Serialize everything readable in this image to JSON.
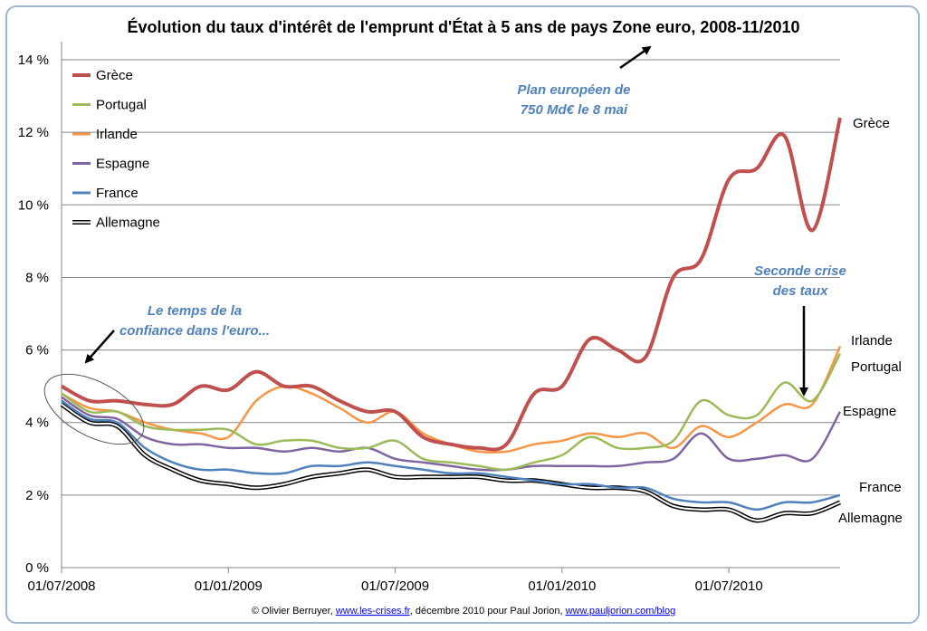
{
  "chart_data": {
    "type": "line",
    "title": "Évolution du taux d'intérêt de l'emprunt d'État à 5 ans de pays Zone euro, 2008-11/2010",
    "xlabel": "",
    "ylabel": "",
    "ylim": [
      0,
      14.5
    ],
    "yticks": [
      "0 %",
      "2 %",
      "4 %",
      "6 %",
      "8 %",
      "10 %",
      "12 %",
      "14 %"
    ],
    "xticks": [
      "01/07/2008",
      "01/01/2009",
      "01/07/2009",
      "01/01/2010",
      "01/07/2010"
    ],
    "x": [
      "2008-07",
      "2008-08",
      "2008-09",
      "2008-10",
      "2008-11",
      "2008-12",
      "2009-01",
      "2009-02",
      "2009-03",
      "2009-04",
      "2009-05",
      "2009-06",
      "2009-07",
      "2009-08",
      "2009-09",
      "2009-10",
      "2009-11",
      "2009-12",
      "2010-01",
      "2010-02",
      "2010-03",
      "2010-04",
      "2010-05",
      "2010-06",
      "2010-07",
      "2010-08",
      "2010-09",
      "2010-10",
      "2010-11"
    ],
    "grid": true,
    "legend_position": "top-left",
    "series": [
      {
        "name": "Grèce",
        "color": "#c0504d",
        "end_label": "Grèce",
        "values": [
          5.0,
          4.6,
          4.6,
          4.5,
          4.5,
          5.0,
          4.9,
          5.4,
          5.0,
          5.0,
          4.6,
          4.3,
          4.3,
          3.6,
          3.4,
          3.3,
          3.4,
          4.8,
          5.0,
          6.3,
          6.0,
          5.8,
          8.0,
          8.5,
          10.7,
          11.0,
          11.9,
          9.3,
          12.4
        ]
      },
      {
        "name": "Portugal",
        "color": "#9bbb59",
        "end_label": "Portugal",
        "values": [
          4.8,
          4.3,
          4.3,
          3.9,
          3.8,
          3.8,
          3.8,
          3.4,
          3.5,
          3.5,
          3.3,
          3.3,
          3.5,
          3.0,
          2.9,
          2.8,
          2.7,
          2.9,
          3.1,
          3.6,
          3.3,
          3.3,
          3.5,
          4.6,
          4.2,
          4.2,
          5.1,
          4.6,
          5.9
        ]
      },
      {
        "name": "Irlande",
        "color": "#f79646",
        "end_label": "Irlande",
        "values": [
          4.8,
          4.4,
          4.3,
          4.0,
          3.8,
          3.7,
          3.6,
          4.6,
          5.0,
          4.8,
          4.4,
          4.0,
          4.3,
          3.7,
          3.4,
          3.2,
          3.2,
          3.4,
          3.5,
          3.7,
          3.6,
          3.7,
          3.3,
          3.9,
          3.6,
          4.0,
          4.5,
          4.5,
          6.1
        ]
      },
      {
        "name": "Espagne",
        "color": "#8064a2",
        "end_label": "Espagne",
        "values": [
          4.7,
          4.2,
          4.1,
          3.6,
          3.4,
          3.4,
          3.3,
          3.3,
          3.2,
          3.3,
          3.2,
          3.3,
          3.0,
          2.9,
          2.8,
          2.7,
          2.7,
          2.8,
          2.8,
          2.8,
          2.8,
          2.9,
          3.0,
          3.7,
          3.0,
          3.0,
          3.1,
          3.0,
          4.3
        ]
      },
      {
        "name": "France",
        "color": "#4f81bd",
        "end_label": "France",
        "values": [
          4.6,
          4.1,
          4.0,
          3.3,
          2.9,
          2.7,
          2.7,
          2.6,
          2.6,
          2.8,
          2.8,
          2.9,
          2.8,
          2.7,
          2.6,
          2.6,
          2.5,
          2.4,
          2.3,
          2.3,
          2.2,
          2.2,
          1.9,
          1.8,
          1.8,
          1.6,
          1.8,
          1.8,
          2.0
        ]
      },
      {
        "name": "Allemagne",
        "color": "#000000",
        "end_label": "Allemagne",
        "values": [
          4.5,
          4.0,
          3.9,
          3.1,
          2.7,
          2.4,
          2.3,
          2.2,
          2.3,
          2.5,
          2.6,
          2.7,
          2.5,
          2.5,
          2.5,
          2.5,
          2.4,
          2.4,
          2.3,
          2.2,
          2.2,
          2.1,
          1.7,
          1.6,
          1.6,
          1.3,
          1.5,
          1.5,
          1.8
        ]
      }
    ],
    "annotations": [
      {
        "text_lines": [
          "Plan européen de",
          "750 Md€ le 8 mai"
        ]
      },
      {
        "text_lines": [
          "Seconde crise",
          "des taux"
        ]
      },
      {
        "text_lines": [
          "Le temps de la",
          "confiance dans l'euro..."
        ]
      }
    ],
    "footer": {
      "prefix": "© Olivier Berruyer, ",
      "link1": "www.les-crises.fr",
      "middle": ", décembre 2010 pour  Paul Jorion, ",
      "link2": "www.pauljorion.com/blog"
    }
  }
}
